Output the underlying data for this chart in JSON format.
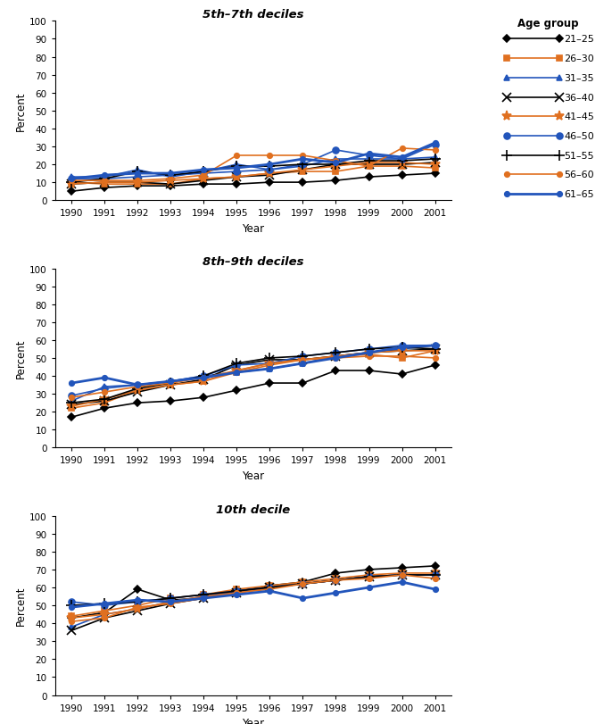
{
  "years": [
    1990,
    1991,
    1992,
    1993,
    1994,
    1995,
    1996,
    1997,
    1998,
    1999,
    2000,
    2001
  ],
  "titles": [
    "5th–7th deciles",
    "8th–9th deciles",
    "10th decile"
  ],
  "age_groups": [
    "21–25",
    "26–30",
    "31–35",
    "36–40",
    "41–45",
    "46–50",
    "51–55",
    "56–60",
    "61–65"
  ],
  "colors": [
    "#000000",
    "#e07020",
    "#2255bb",
    "#000000",
    "#e07020",
    "#2255bb",
    "#000000",
    "#e07020",
    "#2255bb"
  ],
  "markers": [
    "D",
    "s",
    "^",
    "x",
    "*",
    "o",
    "+",
    "o",
    "o"
  ],
  "marker_sizes": [
    4,
    4,
    5,
    7,
    8,
    5,
    8,
    4,
    4
  ],
  "panel1": {
    "data": [
      [
        5,
        7,
        8,
        8,
        9,
        9,
        10,
        10,
        11,
        13,
        14,
        15
      ],
      [
        10,
        9,
        9,
        9,
        12,
        13,
        15,
        16,
        16,
        19,
        19,
        18
      ],
      [
        13,
        13,
        17,
        13,
        16,
        20,
        17,
        19,
        23,
        23,
        23,
        24
      ],
      [
        9,
        10,
        10,
        9,
        11,
        13,
        14,
        17,
        20,
        20,
        20,
        21
      ],
      [
        9,
        10,
        10,
        11,
        12,
        13,
        15,
        17,
        19,
        21,
        21,
        20
      ],
      [
        12,
        12,
        13,
        14,
        15,
        16,
        17,
        20,
        28,
        25,
        23,
        31
      ],
      [
        10,
        12,
        16,
        14,
        16,
        19,
        19,
        20,
        20,
        22,
        22,
        23
      ],
      [
        11,
        11,
        11,
        12,
        14,
        25,
        25,
        25,
        22,
        19,
        29,
        28
      ],
      [
        12,
        14,
        15,
        15,
        17,
        18,
        20,
        23,
        21,
        26,
        24,
        32
      ]
    ]
  },
  "panel2": {
    "data": [
      [
        17,
        22,
        25,
        26,
        28,
        32,
        36,
        36,
        43,
        43,
        41,
        46
      ],
      [
        22,
        25,
        32,
        35,
        37,
        42,
        46,
        49,
        51,
        52,
        50,
        54
      ],
      [
        26,
        34,
        35,
        37,
        40,
        42,
        44,
        47,
        51,
        53,
        55,
        57
      ],
      [
        24,
        26,
        31,
        35,
        38,
        46,
        49,
        49,
        51,
        53,
        54,
        55
      ],
      [
        23,
        27,
        32,
        35,
        37,
        43,
        47,
        49,
        51,
        53,
        54,
        54
      ],
      [
        29,
        33,
        35,
        37,
        40,
        46,
        47,
        51,
        53,
        55,
        57,
        57
      ],
      [
        25,
        27,
        33,
        36,
        40,
        47,
        50,
        51,
        53,
        55,
        56,
        55
      ],
      [
        28,
        31,
        34,
        36,
        39,
        43,
        47,
        49,
        50,
        51,
        51,
        50
      ],
      [
        36,
        39,
        35,
        37,
        39,
        42,
        44,
        47,
        50,
        53,
        56,
        57
      ]
    ]
  },
  "panel3": {
    "data": [
      [
        43,
        46,
        59,
        53,
        54,
        58,
        61,
        63,
        68,
        70,
        71,
        72
      ],
      [
        44,
        47,
        50,
        54,
        56,
        59,
        61,
        63,
        65,
        67,
        68,
        68
      ],
      [
        38,
        45,
        48,
        52,
        55,
        58,
        60,
        62,
        64,
        66,
        67,
        67
      ],
      [
        36,
        43,
        47,
        51,
        54,
        57,
        60,
        62,
        64,
        66,
        67,
        67
      ],
      [
        43,
        45,
        48,
        52,
        55,
        57,
        60,
        62,
        64,
        66,
        67,
        67
      ],
      [
        52,
        50,
        52,
        54,
        56,
        58,
        60,
        62,
        64,
        66,
        67,
        67
      ],
      [
        50,
        51,
        52,
        54,
        56,
        58,
        60,
        62,
        64,
        66,
        67,
        67
      ],
      [
        41,
        43,
        49,
        51,
        54,
        57,
        59,
        62,
        64,
        65,
        67,
        65
      ],
      [
        49,
        51,
        53,
        52,
        54,
        56,
        58,
        54,
        57,
        60,
        63,
        59
      ]
    ]
  },
  "ylim": [
    0,
    100
  ],
  "yticks": [
    0,
    10,
    20,
    30,
    40,
    50,
    60,
    70,
    80,
    90,
    100
  ],
  "xlabel": "Year",
  "ylabel": "Percent",
  "legend_items": [
    {
      "label": "21–25",
      "color": "#000000",
      "marker": "D",
      "msize": 4,
      "lw": 1.2
    },
    {
      "label": "26–30",
      "color": "#e07020",
      "marker": "s",
      "msize": 4,
      "lw": 1.2
    },
    {
      "label": "31–35",
      "color": "#2255bb",
      "marker": "^",
      "msize": 5,
      "lw": 1.2
    },
    {
      "label": "36–40",
      "color": "#000000",
      "marker": "x",
      "msize": 7,
      "lw": 1.2
    },
    {
      "label": "41–45",
      "color": "#e07020",
      "marker": "*",
      "msize": 8,
      "lw": 1.2
    },
    {
      "label": "46–50",
      "color": "#2255bb",
      "marker": "o",
      "msize": 5,
      "lw": 1.2
    },
    {
      "label": "51–55",
      "color": "#000000",
      "marker": "+",
      "msize": 8,
      "lw": 1.2
    },
    {
      "label": "56–60",
      "color": "#e07020",
      "marker": "o",
      "msize": 4,
      "lw": 1.2
    },
    {
      "label": "61–65",
      "color": "#2255bb",
      "marker": "o",
      "msize": 4,
      "lw": 2.0
    }
  ]
}
